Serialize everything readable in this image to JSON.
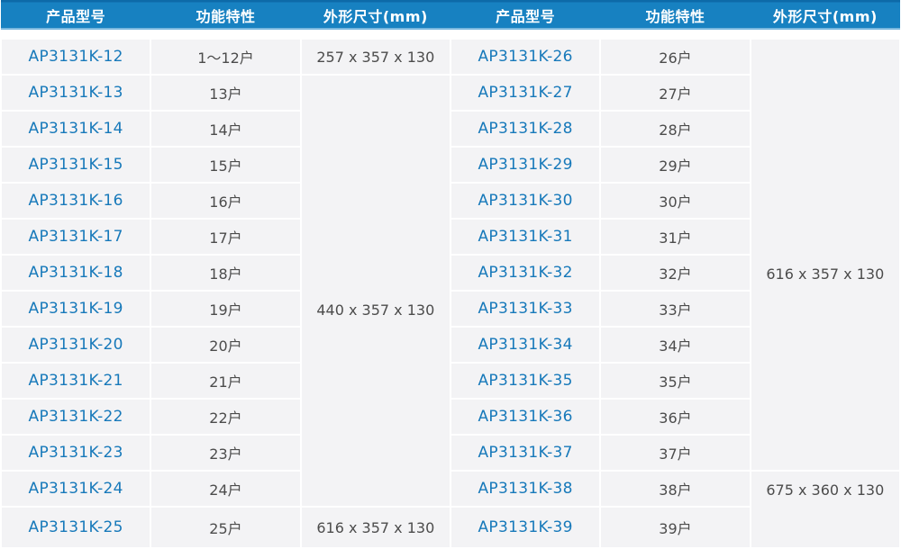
{
  "colors": {
    "header_bg": "#1781c1",
    "header_top_edge": "#0d6aa8",
    "header_text": "#ffffff",
    "model_text_blue": "#1779ba",
    "value_text_gray": "#4c4c4c",
    "cell_bg": "#f3f3f5",
    "divider": "#ffffff"
  },
  "chart_data": [
    {
      "type": "table",
      "title": "",
      "columns": [
        "产品型号",
        "功能特性",
        "外形尺寸(mm)"
      ],
      "rows": [
        [
          "AP3131K-12",
          "1～12户",
          "257 x 357 x 130"
        ],
        [
          "AP3131K-13",
          "13户",
          "440 x 357 x 130"
        ],
        [
          "AP3131K-14",
          "14户",
          "440 x 357 x 130"
        ],
        [
          "AP3131K-15",
          "15户",
          "440 x 357 x 130"
        ],
        [
          "AP3131K-16",
          "16户",
          "440 x 357 x 130"
        ],
        [
          "AP3131K-17",
          "17户",
          "440 x 357 x 130"
        ],
        [
          "AP3131K-18",
          "18户",
          "440 x 357 x 130"
        ],
        [
          "AP3131K-19",
          "19户",
          "440 x 357 x 130"
        ],
        [
          "AP3131K-20",
          "20户",
          "440 x 357 x 130"
        ],
        [
          "AP3131K-21",
          "21户",
          "440 x 357 x 130"
        ],
        [
          "AP3131K-22",
          "22户",
          "440 x 357 x 130"
        ],
        [
          "AP3131K-23",
          "23户",
          "440 x 357 x 130"
        ],
        [
          "AP3131K-24",
          "24户",
          "440 x 357 x 130"
        ],
        [
          "AP3131K-25",
          "25户",
          "616 x 357 x 130"
        ]
      ],
      "merges": "dimension cells merged: rows 13-24 share 440 x 357 x 130"
    },
    {
      "type": "table",
      "title": "",
      "columns": [
        "产品型号",
        "功能特性",
        "外形尺寸(mm)"
      ],
      "rows": [
        [
          "AP3131K-26",
          "26户",
          "616 x 357 x 130"
        ],
        [
          "AP3131K-27",
          "27户",
          "616 x 357 x 130"
        ],
        [
          "AP3131K-28",
          "28户",
          "616 x 357 x 130"
        ],
        [
          "AP3131K-29",
          "29户",
          "616 x 357 x 130"
        ],
        [
          "AP3131K-30",
          "30户",
          "616 x 357 x 130"
        ],
        [
          "AP3131K-31",
          "31户",
          "616 x 357 x 130"
        ],
        [
          "AP3131K-32",
          "32户",
          "616 x 357 x 130"
        ],
        [
          "AP3131K-33",
          "33户",
          "616 x 357 x 130"
        ],
        [
          "AP3131K-34",
          "34户",
          "616 x 357 x 130"
        ],
        [
          "AP3131K-35",
          "35户",
          "616 x 357 x 130"
        ],
        [
          "AP3131K-36",
          "36户",
          "616 x 357 x 130"
        ],
        [
          "AP3131K-37",
          "37户",
          "616 x 357 x 130"
        ],
        [
          "AP3131K-38",
          "38户",
          "675 x 360 x 130"
        ],
        [
          "AP3131K-39",
          "39户",
          "675 x 360 x 130"
        ]
      ],
      "merges": "dimension cells merged: rows 26-37 share 616 x 357 x 130; rows 38-39 share 675 x 360 x 130"
    }
  ]
}
